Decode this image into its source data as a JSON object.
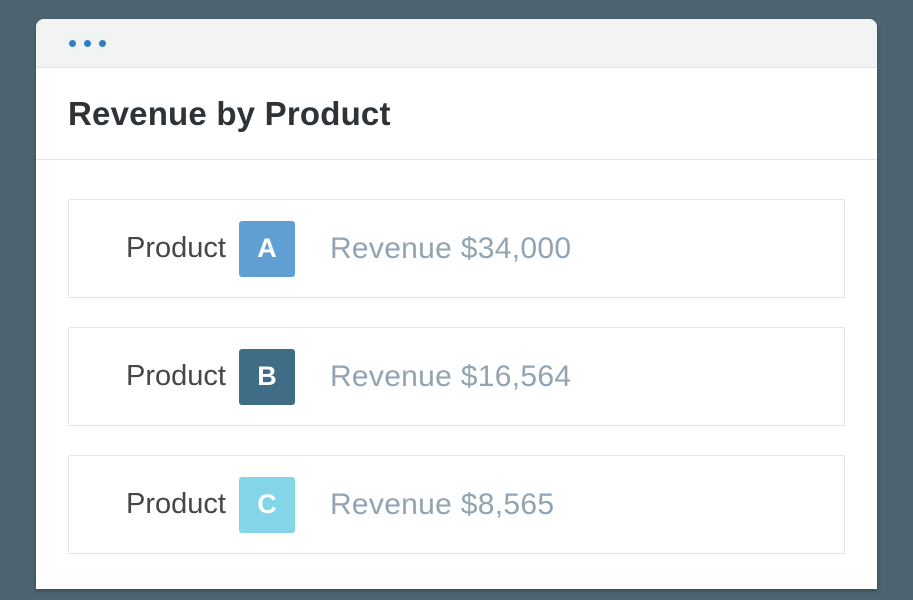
{
  "window": {
    "titlebar": {
      "dot_color": "#2e80c4"
    },
    "title": "Revenue by Product"
  },
  "rows": [
    {
      "label": "Product",
      "badge_letter": "A",
      "badge_color": "#5f9fd3",
      "revenue_text": "Revenue $34,000"
    },
    {
      "label": "Product",
      "badge_letter": "B",
      "badge_color": "#3e6d85",
      "revenue_text": "Revenue $16,564"
    },
    {
      "label": "Product",
      "badge_letter": "C",
      "badge_color": "#83d5e8",
      "revenue_text": "Revenue $8,565"
    }
  ],
  "colors": {
    "background": "#4d6570",
    "titlebar_background": "#f2f3f3",
    "row_border": "#e3e4e4",
    "title_text": "#2e3338",
    "label_text": "#42474c",
    "revenue_text": "#92a4b1"
  }
}
